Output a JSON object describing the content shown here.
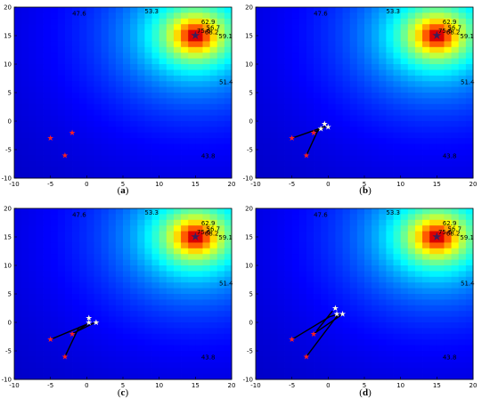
{
  "chart_data": [
    {
      "type": "heatmap",
      "label": "(a)",
      "label_letter": "a",
      "xlim": [
        -10,
        20
      ],
      "ylim": [
        -10,
        20
      ],
      "xticks": [
        "-10",
        "-5",
        "0",
        "5",
        "10",
        "15",
        "20"
      ],
      "yticks": [
        "-10",
        "-5",
        "0",
        "5",
        "10",
        "15",
        "20"
      ],
      "source": {
        "x": 15,
        "y": 15
      },
      "red_points": [
        {
          "x": -5,
          "y": -3
        },
        {
          "x": -2,
          "y": -2
        },
        {
          "x": -3,
          "y": -6
        }
      ],
      "stars": [],
      "paths": [],
      "contour_labels": [
        {
          "text": "47.6",
          "x": -2,
          "y": 18.5
        },
        {
          "text": "53.3",
          "x": 8,
          "y": 19.8
        },
        {
          "text": "62.9",
          "x": 15.8,
          "y": 17.0
        },
        {
          "text": "56.7",
          "x": 16.5,
          "y": 16.0
        },
        {
          "text": "75.6",
          "x": 15.2,
          "y": 15.5
        },
        {
          "text": "68.2",
          "x": 16.3,
          "y": 15.2
        },
        {
          "text": "59.1",
          "x": 18.2,
          "y": 14.5
        },
        {
          "text": "51.4",
          "x": 20.0,
          "y": 6.5
        },
        {
          "text": "43.8",
          "x": 15.8,
          "y": -6.5
        }
      ]
    },
    {
      "type": "heatmap",
      "label": "(b)",
      "label_letter": "b",
      "xlim": [
        -10,
        20
      ],
      "ylim": [
        -10,
        20
      ],
      "xticks": [
        "-10",
        "-5",
        "0",
        "5",
        "10",
        "15",
        "20"
      ],
      "yticks": [
        "-10",
        "-5",
        "0",
        "5",
        "10",
        "15",
        "20"
      ],
      "source": {
        "x": 15,
        "y": 15
      },
      "red_points": [
        {
          "x": -5,
          "y": -3
        },
        {
          "x": -2,
          "y": -2
        },
        {
          "x": -3,
          "y": -6
        }
      ],
      "stars": [
        {
          "x": -0.5,
          "y": -0.5
        },
        {
          "x": 0,
          "y": -1
        },
        {
          "x": -1,
          "y": -1.3
        }
      ],
      "paths": [
        [
          [
            -5,
            -3
          ],
          [
            -0.3,
            -0.9
          ],
          [
            -1.4,
            -1.6
          ],
          [
            -3,
            -6
          ]
        ],
        [
          [
            -2,
            -2
          ],
          [
            -0.7,
            -1.3
          ]
        ]
      ],
      "contour_labels": [
        {
          "text": "47.6",
          "x": -2,
          "y": 18.5
        },
        {
          "text": "53.3",
          "x": 8,
          "y": 19.8
        },
        {
          "text": "62.9",
          "x": 15.8,
          "y": 17.0
        },
        {
          "text": "56.7",
          "x": 16.5,
          "y": 16.0
        },
        {
          "text": "75.6",
          "x": 15.2,
          "y": 15.5
        },
        {
          "text": "68.2",
          "x": 16.3,
          "y": 15.2
        },
        {
          "text": "59.1",
          "x": 18.2,
          "y": 14.5
        },
        {
          "text": "51.4",
          "x": 20.0,
          "y": 6.5
        },
        {
          "text": "43.8",
          "x": 15.8,
          "y": -6.5
        }
      ]
    },
    {
      "type": "heatmap",
      "label": "(c)",
      "label_letter": "c",
      "xlim": [
        -10,
        20
      ],
      "ylim": [
        -10,
        20
      ],
      "xticks": [
        "-10",
        "-5",
        "0",
        "5",
        "10",
        "15",
        "20"
      ],
      "yticks": [
        "-10",
        "-5",
        "0",
        "5",
        "10",
        "15",
        "20"
      ],
      "source": {
        "x": 15,
        "y": 15
      },
      "red_points": [
        {
          "x": -5,
          "y": -3
        },
        {
          "x": -2,
          "y": -2
        },
        {
          "x": -3,
          "y": -6
        }
      ],
      "stars": [
        {
          "x": 0.3,
          "y": 0.8
        },
        {
          "x": 1.3,
          "y": 0
        },
        {
          "x": 0.3,
          "y": 0
        }
      ],
      "paths": [
        [
          [
            -5,
            -3
          ],
          [
            0.1,
            -0.3
          ],
          [
            -1.1,
            -0.9
          ],
          [
            -3,
            -6
          ]
        ],
        [
          [
            -2,
            -2
          ],
          [
            1.0,
            -0.1
          ]
        ],
        [
          [
            -1.1,
            -1.3
          ],
          [
            0.2,
            -0.2
          ]
        ]
      ],
      "contour_labels": [
        {
          "text": "47.6",
          "x": -2,
          "y": 18.5
        },
        {
          "text": "53.3",
          "x": 8,
          "y": 19.8
        },
        {
          "text": "62.9",
          "x": 15.8,
          "y": 17.0
        },
        {
          "text": "56.7",
          "x": 16.5,
          "y": 16.0
        },
        {
          "text": "75.6",
          "x": 15.2,
          "y": 15.5
        },
        {
          "text": "68.2",
          "x": 16.3,
          "y": 15.2
        },
        {
          "text": "59.1",
          "x": 18.2,
          "y": 14.5
        },
        {
          "text": "51.4",
          "x": 20.0,
          "y": 6.5
        },
        {
          "text": "43.8",
          "x": 15.8,
          "y": -6.5
        }
      ]
    },
    {
      "type": "heatmap",
      "label": "(d)",
      "label_letter": "d",
      "xlim": [
        -10,
        20
      ],
      "ylim": [
        -10,
        20
      ],
      "xticks": [
        "-10",
        "-5",
        "0",
        "5",
        "10",
        "15",
        "20"
      ],
      "yticks": [
        "-10",
        "-5",
        "0",
        "5",
        "10",
        "15",
        "20"
      ],
      "source": {
        "x": 15,
        "y": 15
      },
      "red_points": [
        {
          "x": -5,
          "y": -3
        },
        {
          "x": -2,
          "y": -2
        },
        {
          "x": -3,
          "y": -6
        }
      ],
      "stars": [
        {
          "x": 1.0,
          "y": 2.5
        },
        {
          "x": 2.0,
          "y": 1.5
        },
        {
          "x": 1.2,
          "y": 1.5
        }
      ],
      "paths": [
        [
          [
            -5,
            -3
          ],
          [
            0.2,
            1.0
          ],
          [
            1.4,
            1.4
          ],
          [
            -3,
            -6
          ]
        ],
        [
          [
            -2,
            -2
          ],
          [
            1.8,
            1.3
          ]
        ],
        [
          [
            -1.6,
            -1.5
          ],
          [
            0.6,
            2.0
          ]
        ]
      ],
      "contour_labels": [
        {
          "text": "47.6",
          "x": -2,
          "y": 18.5
        },
        {
          "text": "53.3",
          "x": 8,
          "y": 19.8
        },
        {
          "text": "62.9",
          "x": 15.8,
          "y": 17.0
        },
        {
          "text": "56.7",
          "x": 16.5,
          "y": 16.0
        },
        {
          "text": "75.6",
          "x": 15.2,
          "y": 15.5
        },
        {
          "text": "68.2",
          "x": 16.3,
          "y": 15.2
        },
        {
          "text": "59.1",
          "x": 18.2,
          "y": 14.5
        },
        {
          "text": "51.4",
          "x": 20.0,
          "y": 6.5
        },
        {
          "text": "43.8",
          "x": 15.8,
          "y": -6.5
        }
      ]
    }
  ]
}
